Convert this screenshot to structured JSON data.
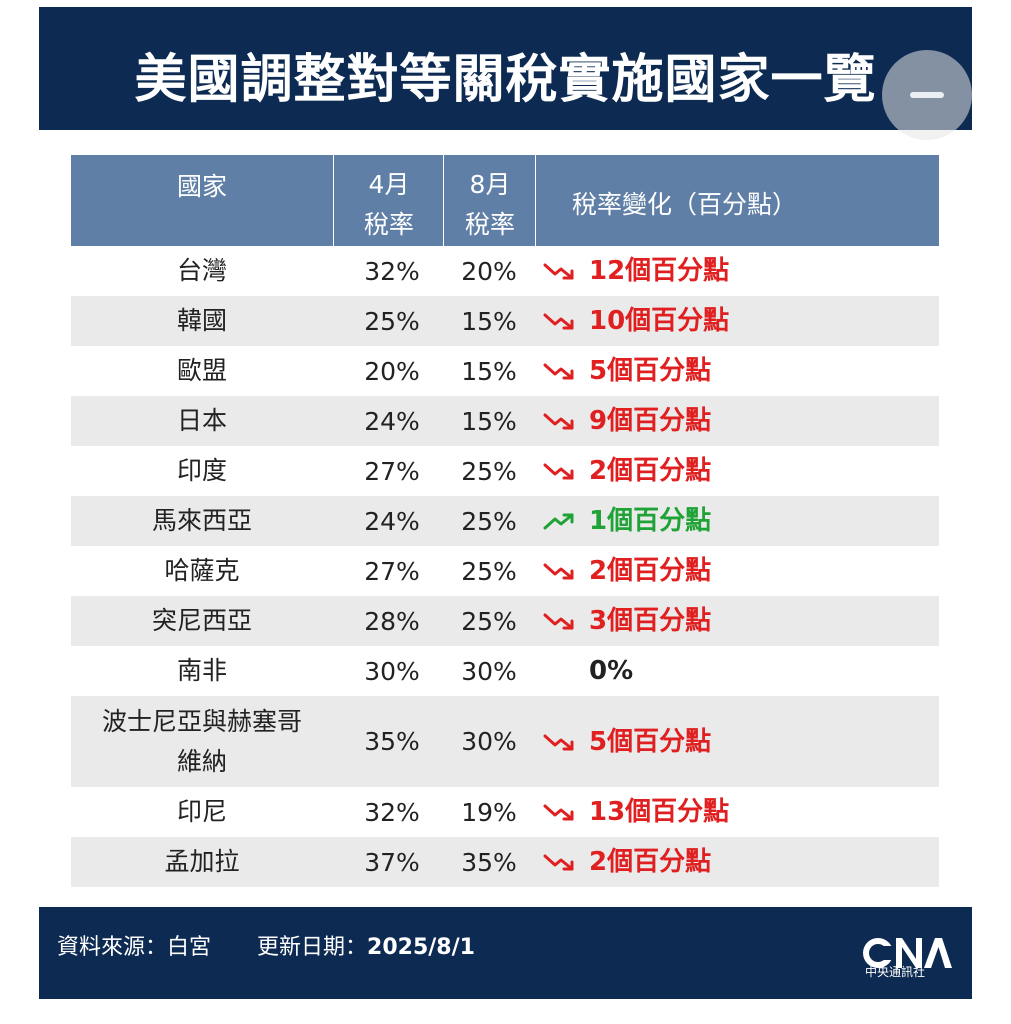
{
  "title": "美國調整對等關稅實施國家一覽",
  "table": {
    "headers": {
      "country": "國家",
      "april_line1": "4月",
      "april_line2": "稅率",
      "august_line1": "8月",
      "august_line2": "稅率",
      "change": "稅率變化（百分點）"
    },
    "rows": [
      {
        "country": "台灣",
        "april": "32%",
        "august": "20%",
        "change": "12個百分點",
        "direction": "down"
      },
      {
        "country": "韓國",
        "april": "25%",
        "august": "15%",
        "change": "10個百分點",
        "direction": "down"
      },
      {
        "country": "歐盟",
        "april": "20%",
        "august": "15%",
        "change": "5個百分點",
        "direction": "down"
      },
      {
        "country": "日本",
        "april": "24%",
        "august": "15%",
        "change": "9個百分點",
        "direction": "down"
      },
      {
        "country": "印度",
        "april": "27%",
        "august": "25%",
        "change": "2個百分點",
        "direction": "down"
      },
      {
        "country": "馬來西亞",
        "april": "24%",
        "august": "25%",
        "change": "1個百分點",
        "direction": "up"
      },
      {
        "country": "哈薩克",
        "april": "27%",
        "august": "25%",
        "change": "2個百分點",
        "direction": "down"
      },
      {
        "country": "突尼西亞",
        "april": "28%",
        "august": "25%",
        "change": "3個百分點",
        "direction": "down"
      },
      {
        "country": "南非",
        "april": "30%",
        "august": "30%",
        "change": "0%",
        "direction": "none"
      },
      {
        "country_line1": "波士尼亞與赫塞哥",
        "country_line2": "維納",
        "april": "35%",
        "august": "30%",
        "change": "5個百分點",
        "direction": "down"
      },
      {
        "country": "印尼",
        "april": "32%",
        "august": "19%",
        "change": "13個百分點",
        "direction": "down"
      },
      {
        "country": "孟加拉",
        "april": "37%",
        "august": "35%",
        "change": "2個百分點",
        "direction": "down"
      }
    ]
  },
  "footer": {
    "source": "資料來源：白宮",
    "updated_label": "更新日期：",
    "updated_date": "2025/8/1",
    "logo_text": "CNA",
    "logo_sub": "中央通訊社"
  },
  "colors": {
    "header_bg": "#0d2b52",
    "table_header_bg": "#5f7fa7",
    "decrease": "#e02020",
    "increase": "#1fa236"
  }
}
